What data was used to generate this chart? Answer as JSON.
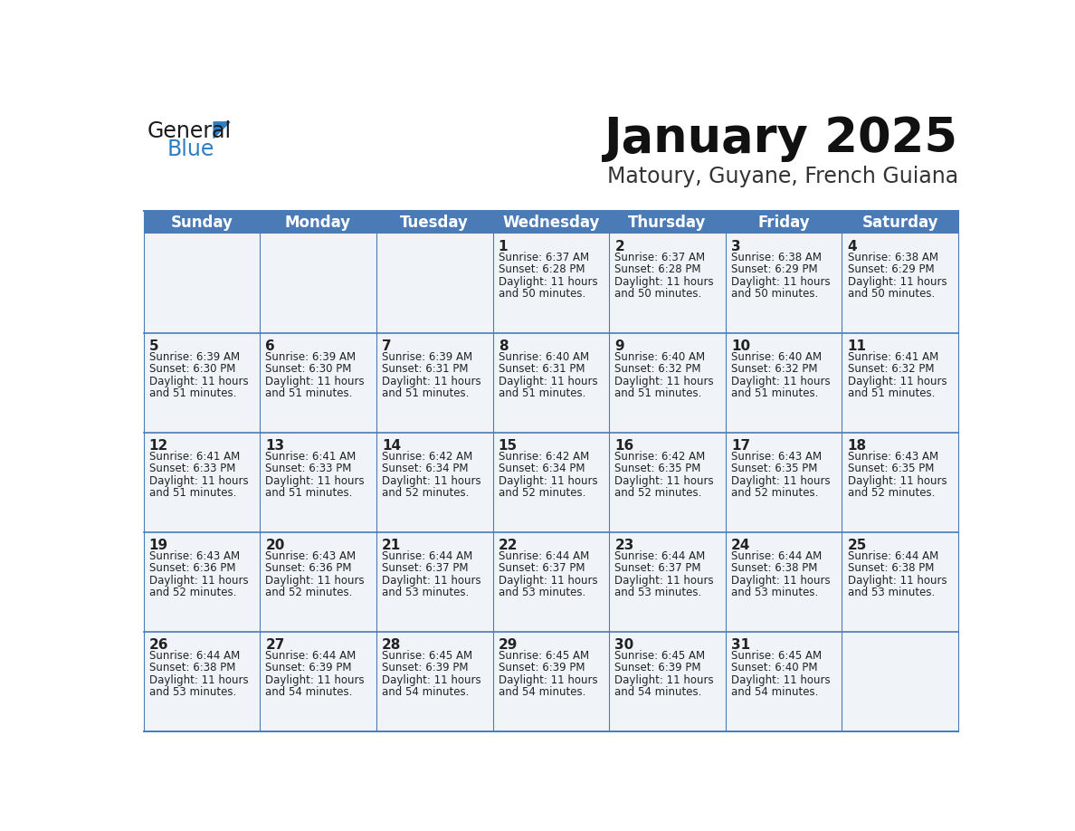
{
  "title": "January 2025",
  "subtitle": "Matoury, Guyane, French Guiana",
  "days_of_week": [
    "Sunday",
    "Monday",
    "Tuesday",
    "Wednesday",
    "Thursday",
    "Friday",
    "Saturday"
  ],
  "header_bg": "#4A7BB7",
  "header_text_color": "#FFFFFF",
  "cell_bg_light": "#F0F4F8",
  "border_color": "#4A7BB7",
  "day_num_color": "#222222",
  "text_color": "#222222",
  "calendar": [
    [
      {
        "day": "",
        "sunrise": "",
        "sunset": "",
        "daylight": ""
      },
      {
        "day": "",
        "sunrise": "",
        "sunset": "",
        "daylight": ""
      },
      {
        "day": "",
        "sunrise": "",
        "sunset": "",
        "daylight": ""
      },
      {
        "day": "1",
        "sunrise": "Sunrise: 6:37 AM",
        "sunset": "Sunset: 6:28 PM",
        "daylight": "Daylight: 11 hours\nand 50 minutes."
      },
      {
        "day": "2",
        "sunrise": "Sunrise: 6:37 AM",
        "sunset": "Sunset: 6:28 PM",
        "daylight": "Daylight: 11 hours\nand 50 minutes."
      },
      {
        "day": "3",
        "sunrise": "Sunrise: 6:38 AM",
        "sunset": "Sunset: 6:29 PM",
        "daylight": "Daylight: 11 hours\nand 50 minutes."
      },
      {
        "day": "4",
        "sunrise": "Sunrise: 6:38 AM",
        "sunset": "Sunset: 6:29 PM",
        "daylight": "Daylight: 11 hours\nand 50 minutes."
      }
    ],
    [
      {
        "day": "5",
        "sunrise": "Sunrise: 6:39 AM",
        "sunset": "Sunset: 6:30 PM",
        "daylight": "Daylight: 11 hours\nand 51 minutes."
      },
      {
        "day": "6",
        "sunrise": "Sunrise: 6:39 AM",
        "sunset": "Sunset: 6:30 PM",
        "daylight": "Daylight: 11 hours\nand 51 minutes."
      },
      {
        "day": "7",
        "sunrise": "Sunrise: 6:39 AM",
        "sunset": "Sunset: 6:31 PM",
        "daylight": "Daylight: 11 hours\nand 51 minutes."
      },
      {
        "day": "8",
        "sunrise": "Sunrise: 6:40 AM",
        "sunset": "Sunset: 6:31 PM",
        "daylight": "Daylight: 11 hours\nand 51 minutes."
      },
      {
        "day": "9",
        "sunrise": "Sunrise: 6:40 AM",
        "sunset": "Sunset: 6:32 PM",
        "daylight": "Daylight: 11 hours\nand 51 minutes."
      },
      {
        "day": "10",
        "sunrise": "Sunrise: 6:40 AM",
        "sunset": "Sunset: 6:32 PM",
        "daylight": "Daylight: 11 hours\nand 51 minutes."
      },
      {
        "day": "11",
        "sunrise": "Sunrise: 6:41 AM",
        "sunset": "Sunset: 6:32 PM",
        "daylight": "Daylight: 11 hours\nand 51 minutes."
      }
    ],
    [
      {
        "day": "12",
        "sunrise": "Sunrise: 6:41 AM",
        "sunset": "Sunset: 6:33 PM",
        "daylight": "Daylight: 11 hours\nand 51 minutes."
      },
      {
        "day": "13",
        "sunrise": "Sunrise: 6:41 AM",
        "sunset": "Sunset: 6:33 PM",
        "daylight": "Daylight: 11 hours\nand 51 minutes."
      },
      {
        "day": "14",
        "sunrise": "Sunrise: 6:42 AM",
        "sunset": "Sunset: 6:34 PM",
        "daylight": "Daylight: 11 hours\nand 52 minutes."
      },
      {
        "day": "15",
        "sunrise": "Sunrise: 6:42 AM",
        "sunset": "Sunset: 6:34 PM",
        "daylight": "Daylight: 11 hours\nand 52 minutes."
      },
      {
        "day": "16",
        "sunrise": "Sunrise: 6:42 AM",
        "sunset": "Sunset: 6:35 PM",
        "daylight": "Daylight: 11 hours\nand 52 minutes."
      },
      {
        "day": "17",
        "sunrise": "Sunrise: 6:43 AM",
        "sunset": "Sunset: 6:35 PM",
        "daylight": "Daylight: 11 hours\nand 52 minutes."
      },
      {
        "day": "18",
        "sunrise": "Sunrise: 6:43 AM",
        "sunset": "Sunset: 6:35 PM",
        "daylight": "Daylight: 11 hours\nand 52 minutes."
      }
    ],
    [
      {
        "day": "19",
        "sunrise": "Sunrise: 6:43 AM",
        "sunset": "Sunset: 6:36 PM",
        "daylight": "Daylight: 11 hours\nand 52 minutes."
      },
      {
        "day": "20",
        "sunrise": "Sunrise: 6:43 AM",
        "sunset": "Sunset: 6:36 PM",
        "daylight": "Daylight: 11 hours\nand 52 minutes."
      },
      {
        "day": "21",
        "sunrise": "Sunrise: 6:44 AM",
        "sunset": "Sunset: 6:37 PM",
        "daylight": "Daylight: 11 hours\nand 53 minutes."
      },
      {
        "day": "22",
        "sunrise": "Sunrise: 6:44 AM",
        "sunset": "Sunset: 6:37 PM",
        "daylight": "Daylight: 11 hours\nand 53 minutes."
      },
      {
        "day": "23",
        "sunrise": "Sunrise: 6:44 AM",
        "sunset": "Sunset: 6:37 PM",
        "daylight": "Daylight: 11 hours\nand 53 minutes."
      },
      {
        "day": "24",
        "sunrise": "Sunrise: 6:44 AM",
        "sunset": "Sunset: 6:38 PM",
        "daylight": "Daylight: 11 hours\nand 53 minutes."
      },
      {
        "day": "25",
        "sunrise": "Sunrise: 6:44 AM",
        "sunset": "Sunset: 6:38 PM",
        "daylight": "Daylight: 11 hours\nand 53 minutes."
      }
    ],
    [
      {
        "day": "26",
        "sunrise": "Sunrise: 6:44 AM",
        "sunset": "Sunset: 6:38 PM",
        "daylight": "Daylight: 11 hours\nand 53 minutes."
      },
      {
        "day": "27",
        "sunrise": "Sunrise: 6:44 AM",
        "sunset": "Sunset: 6:39 PM",
        "daylight": "Daylight: 11 hours\nand 54 minutes."
      },
      {
        "day": "28",
        "sunrise": "Sunrise: 6:45 AM",
        "sunset": "Sunset: 6:39 PM",
        "daylight": "Daylight: 11 hours\nand 54 minutes."
      },
      {
        "day": "29",
        "sunrise": "Sunrise: 6:45 AM",
        "sunset": "Sunset: 6:39 PM",
        "daylight": "Daylight: 11 hours\nand 54 minutes."
      },
      {
        "day": "30",
        "sunrise": "Sunrise: 6:45 AM",
        "sunset": "Sunset: 6:39 PM",
        "daylight": "Daylight: 11 hours\nand 54 minutes."
      },
      {
        "day": "31",
        "sunrise": "Sunrise: 6:45 AM",
        "sunset": "Sunset: 6:40 PM",
        "daylight": "Daylight: 11 hours\nand 54 minutes."
      },
      {
        "day": "",
        "sunrise": "",
        "sunset": "",
        "daylight": ""
      }
    ]
  ],
  "logo_general_color": "#1a1a1a",
  "logo_blue_color": "#2E7EC4",
  "logo_triangle_color": "#2E7EC4",
  "title_fontsize": 38,
  "subtitle_fontsize": 17,
  "header_fontsize": 12,
  "day_num_fontsize": 11,
  "cell_fontsize": 8.5
}
